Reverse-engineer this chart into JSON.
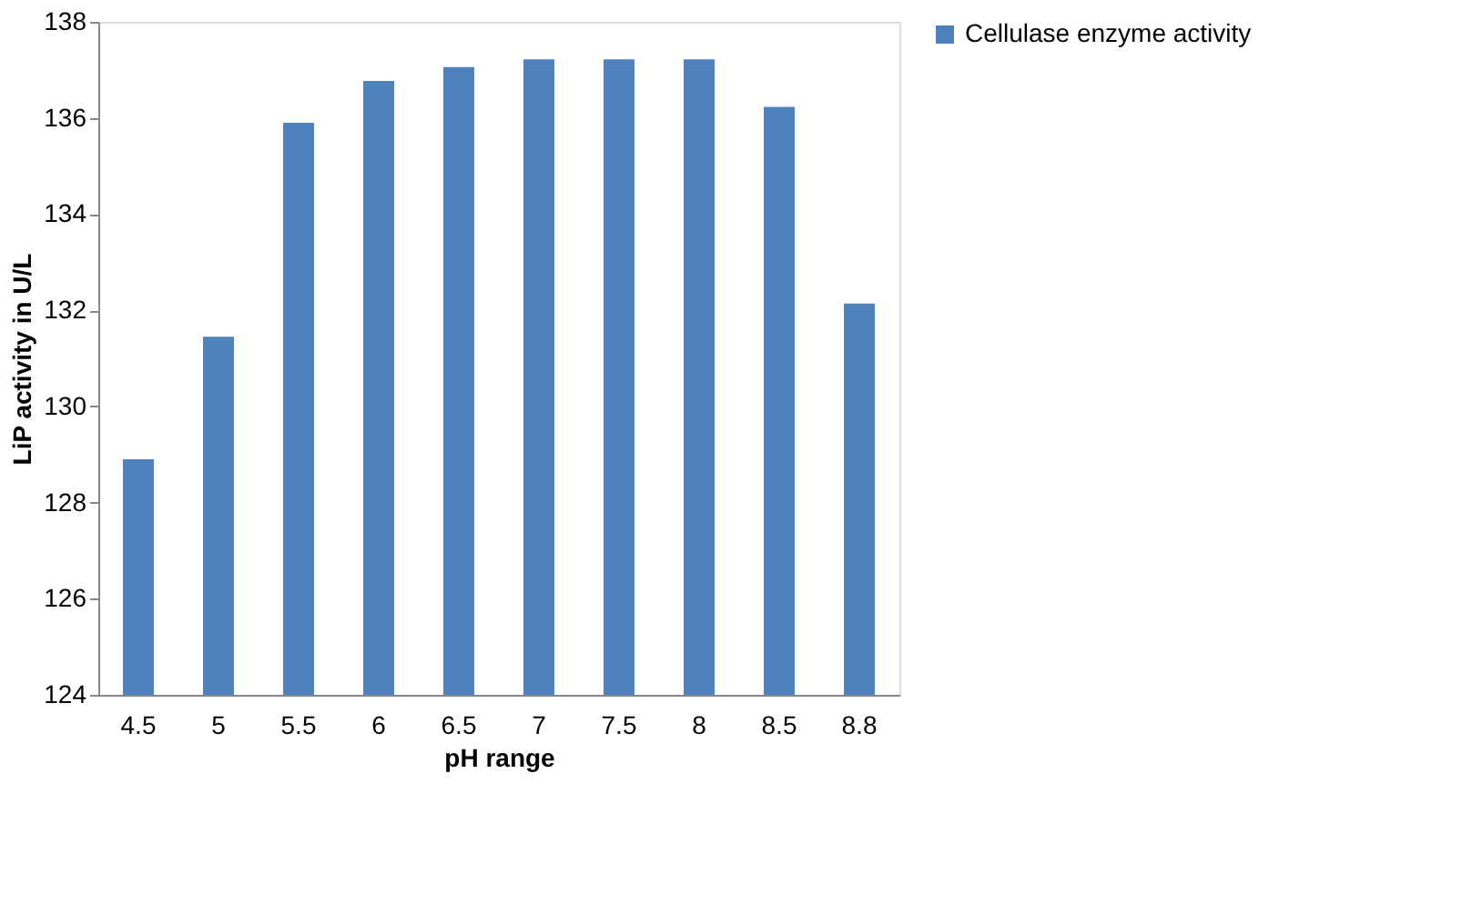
{
  "chart_data": {
    "type": "bar",
    "xlabel": "pH range",
    "ylabel": "LiP activity in U/L",
    "categories": [
      "4.5",
      "5",
      "5.5",
      "6",
      "6.5",
      "7",
      "7.5",
      "8",
      "8.5",
      "8.8"
    ],
    "series": [
      {
        "name": "Cellulase enzyme activity",
        "color": "#4f81bd",
        "values": [
          128.9,
          131.45,
          135.9,
          136.77,
          137.06,
          137.22,
          137.22,
          137.22,
          136.23,
          132.14
        ]
      }
    ],
    "ylim": [
      124,
      138
    ],
    "yticks": [
      124,
      126,
      128,
      130,
      132,
      134,
      136,
      138
    ],
    "grid": false,
    "legend": "right"
  }
}
